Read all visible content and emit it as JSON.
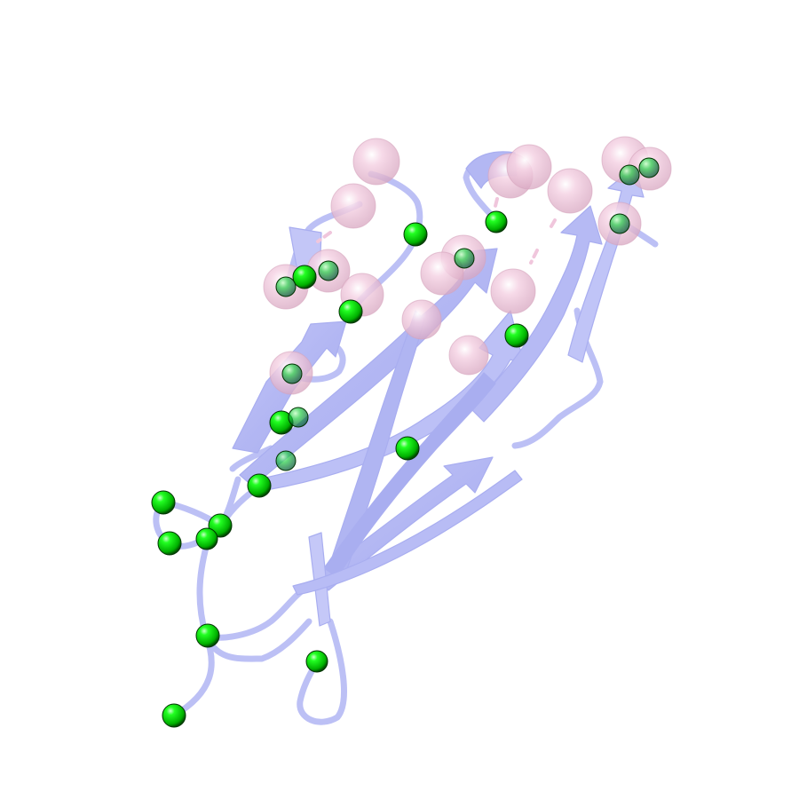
{
  "scene": {
    "background": "#ffffff",
    "ribbon_color": "#b8bcf5",
    "ribbon_dark": "#9ea3ee",
    "ribbon_light": "#d2d5fa",
    "sphere_pink": "#f0c6dc",
    "sphere_green": "#00e000",
    "sphere_green_dark": "#006400"
  }
}
